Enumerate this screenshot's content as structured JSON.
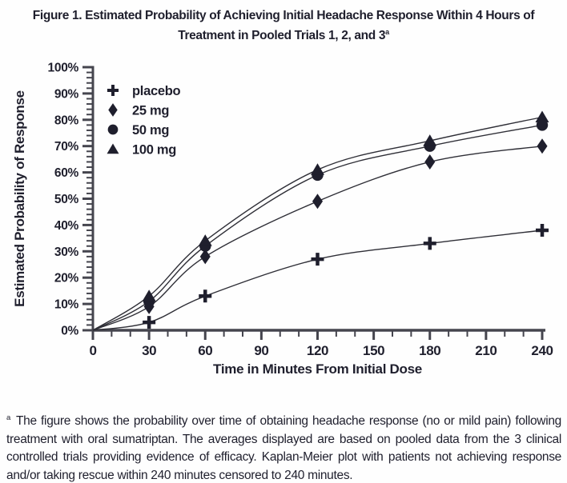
{
  "title": {
    "line1": "Figure 1. Estimated Probability of Achieving Initial Headache Response Within 4 Hours of",
    "line2": "Treatment in Pooled Trials 1, 2, and 3",
    "sup": "a"
  },
  "footnote": {
    "sup": "a",
    "text": "The figure shows the probability over time of obtaining headache response (no or mild pain) following treatment with oral sumatriptan. The averages displayed are based on pooled data from the 3 clinical controlled trials providing evidence of efficacy. Kaplan-Meier plot with patients not achieving response and/or taking rescue within 240 minutes censored to 240 minutes."
  },
  "colors": {
    "ink": "#1f1f2d",
    "line": "#2e2e36",
    "axis": "#45454e",
    "background": "#ffffff"
  },
  "chart_data": {
    "type": "line",
    "title": "Estimated Probability of Achieving Initial Headache Response Within 4 Hours of Treatment in Pooled Trials 1, 2, and 3",
    "xlabel": "Time in Minutes From Initial Dose",
    "ylabel": "Estimated Probability of Response",
    "xlim": [
      0,
      240
    ],
    "ylim": [
      0,
      100
    ],
    "x_major_step": 30,
    "x_minor_step": 10,
    "y_major_step": 10,
    "y_minor_step": 2,
    "x_tick_labels": [
      "0",
      "30",
      "60",
      "90",
      "120",
      "150",
      "180",
      "210",
      "240"
    ],
    "y_tick_labels": [
      "0%",
      "10%",
      "20%",
      "30%",
      "40%",
      "50%",
      "60%",
      "70%",
      "80%",
      "90%",
      "100%"
    ],
    "y_tick_suffix": "%",
    "grid": false,
    "legend_position": "top-left",
    "x": [
      0,
      30,
      60,
      120,
      180,
      240
    ],
    "series": [
      {
        "name": "placebo",
        "marker": "plus",
        "values": [
          0,
          3,
          13,
          27,
          33,
          38
        ]
      },
      {
        "name": "25 mg",
        "marker": "diamond",
        "values": [
          0,
          9,
          28,
          49,
          64,
          70
        ]
      },
      {
        "name": "50 mg",
        "marker": "circle",
        "values": [
          0,
          11,
          32,
          59,
          70,
          78
        ]
      },
      {
        "name": "100 mg",
        "marker": "triangle",
        "values": [
          0,
          13,
          34,
          61,
          72,
          81
        ]
      }
    ]
  }
}
